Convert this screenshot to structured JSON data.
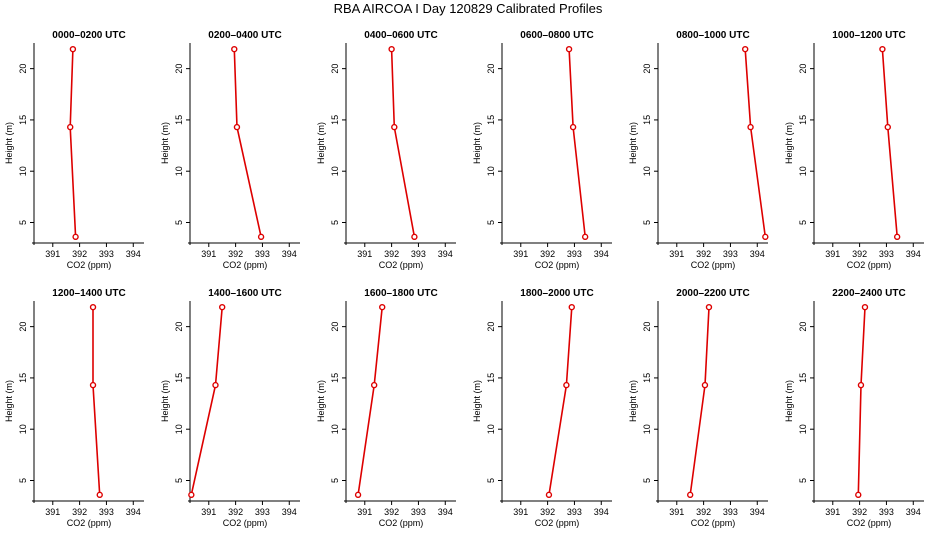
{
  "figure": {
    "title": "RBA AIRCOA I  Day 120829  Calibrated Profiles"
  },
  "colors": {
    "series": "#dd0000",
    "axis": "#000000"
  },
  "chart_data": [
    {
      "type": "line",
      "title": "0000–0200 UTC",
      "xlabel": "CO2 (ppm)",
      "ylabel": "Height (m)",
      "xlim": [
        390.3,
        394.4
      ],
      "ylim": [
        3,
        22.5
      ],
      "x_ticks": [
        391,
        392,
        393,
        394
      ],
      "y_ticks": [
        5,
        10,
        15,
        20
      ],
      "grid": false,
      "series": [
        {
          "points": [
            {
              "x": 391.85,
              "y": 3.6
            },
            {
              "x": 391.65,
              "y": 14.3
            },
            {
              "x": 391.75,
              "y": 21.9
            }
          ]
        }
      ]
    },
    {
      "type": "line",
      "title": "0200–0400 UTC",
      "xlabel": "CO2 (ppm)",
      "ylabel": "Height (m)",
      "xlim": [
        390.3,
        394.4
      ],
      "ylim": [
        3,
        22.5
      ],
      "x_ticks": [
        391,
        392,
        393,
        394
      ],
      "y_ticks": [
        5,
        10,
        15,
        20
      ],
      "grid": false,
      "series": [
        {
          "points": [
            {
              "x": 392.95,
              "y": 3.6
            },
            {
              "x": 392.05,
              "y": 14.3
            },
            {
              "x": 391.95,
              "y": 21.9
            }
          ]
        }
      ]
    },
    {
      "type": "line",
      "title": "0400–0600 UTC",
      "xlabel": "CO2 (ppm)",
      "ylabel": "Height (m)",
      "xlim": [
        390.3,
        394.4
      ],
      "ylim": [
        3,
        22.5
      ],
      "x_ticks": [
        391,
        392,
        393,
        394
      ],
      "y_ticks": [
        5,
        10,
        15,
        20
      ],
      "grid": false,
      "series": [
        {
          "points": [
            {
              "x": 392.85,
              "y": 3.6
            },
            {
              "x": 392.1,
              "y": 14.3
            },
            {
              "x": 392.0,
              "y": 21.9
            }
          ]
        }
      ]
    },
    {
      "type": "line",
      "title": "0600–0800 UTC",
      "xlabel": "CO2 (ppm)",
      "ylabel": "Height (m)",
      "xlim": [
        390.3,
        394.4
      ],
      "ylim": [
        3,
        22.5
      ],
      "x_ticks": [
        391,
        392,
        393,
        394
      ],
      "y_ticks": [
        5,
        10,
        15,
        20
      ],
      "grid": false,
      "series": [
        {
          "points": [
            {
              "x": 393.4,
              "y": 3.6
            },
            {
              "x": 392.95,
              "y": 14.3
            },
            {
              "x": 392.8,
              "y": 21.9
            }
          ]
        }
      ]
    },
    {
      "type": "line",
      "title": "0800–1000 UTC",
      "xlabel": "CO2 (ppm)",
      "ylabel": "Height (m)",
      "xlim": [
        390.3,
        394.4
      ],
      "ylim": [
        3,
        22.5
      ],
      "x_ticks": [
        391,
        392,
        393,
        394
      ],
      "y_ticks": [
        5,
        10,
        15,
        20
      ],
      "grid": false,
      "series": [
        {
          "points": [
            {
              "x": 394.3,
              "y": 3.6
            },
            {
              "x": 393.75,
              "y": 14.3
            },
            {
              "x": 393.55,
              "y": 21.9
            }
          ]
        }
      ]
    },
    {
      "type": "line",
      "title": "1000–1200 UTC",
      "xlabel": "CO2 (ppm)",
      "ylabel": "Height (m)",
      "xlim": [
        390.3,
        394.4
      ],
      "ylim": [
        3,
        22.5
      ],
      "x_ticks": [
        391,
        392,
        393,
        394
      ],
      "y_ticks": [
        5,
        10,
        15,
        20
      ],
      "grid": false,
      "series": [
        {
          "points": [
            {
              "x": 393.4,
              "y": 3.6
            },
            {
              "x": 393.05,
              "y": 14.3
            },
            {
              "x": 392.85,
              "y": 21.9
            }
          ]
        }
      ]
    },
    {
      "type": "line",
      "title": "1200–1400 UTC",
      "xlabel": "CO2 (ppm)",
      "ylabel": "Height (m)",
      "xlim": [
        390.3,
        394.4
      ],
      "ylim": [
        3,
        22.5
      ],
      "x_ticks": [
        391,
        392,
        393,
        394
      ],
      "y_ticks": [
        5,
        10,
        15,
        20
      ],
      "grid": false,
      "series": [
        {
          "points": [
            {
              "x": 392.75,
              "y": 3.6
            },
            {
              "x": 392.5,
              "y": 14.3
            },
            {
              "x": 392.5,
              "y": 21.9
            }
          ]
        }
      ]
    },
    {
      "type": "line",
      "title": "1400–1600 UTC",
      "xlabel": "CO2 (ppm)",
      "ylabel": "Height (m)",
      "xlim": [
        390.3,
        394.4
      ],
      "ylim": [
        3,
        22.5
      ],
      "x_ticks": [
        391,
        392,
        393,
        394
      ],
      "y_ticks": [
        5,
        10,
        15,
        20
      ],
      "grid": false,
      "series": [
        {
          "points": [
            {
              "x": 390.35,
              "y": 3.6
            },
            {
              "x": 391.25,
              "y": 14.3
            },
            {
              "x": 391.5,
              "y": 21.9
            }
          ]
        }
      ]
    },
    {
      "type": "line",
      "title": "1600–1800 UTC",
      "xlabel": "CO2 (ppm)",
      "ylabel": "Height (m)",
      "xlim": [
        390.3,
        394.4
      ],
      "ylim": [
        3,
        22.5
      ],
      "x_ticks": [
        391,
        392,
        393,
        394
      ],
      "y_ticks": [
        5,
        10,
        15,
        20
      ],
      "grid": false,
      "series": [
        {
          "points": [
            {
              "x": 390.75,
              "y": 3.6
            },
            {
              "x": 391.35,
              "y": 14.3
            },
            {
              "x": 391.65,
              "y": 21.9
            }
          ]
        }
      ]
    },
    {
      "type": "line",
      "title": "1800–2000 UTC",
      "xlabel": "CO2 (ppm)",
      "ylabel": "Height (m)",
      "xlim": [
        390.3,
        394.4
      ],
      "ylim": [
        3,
        22.5
      ],
      "x_ticks": [
        391,
        392,
        393,
        394
      ],
      "y_ticks": [
        5,
        10,
        15,
        20
      ],
      "grid": false,
      "series": [
        {
          "points": [
            {
              "x": 392.05,
              "y": 3.6
            },
            {
              "x": 392.7,
              "y": 14.3
            },
            {
              "x": 392.9,
              "y": 21.9
            }
          ]
        }
      ]
    },
    {
      "type": "line",
      "title": "2000–2200 UTC",
      "xlabel": "CO2 (ppm)",
      "ylabel": "Height (m)",
      "xlim": [
        390.3,
        394.4
      ],
      "ylim": [
        3,
        22.5
      ],
      "x_ticks": [
        391,
        392,
        393,
        394
      ],
      "y_ticks": [
        5,
        10,
        15,
        20
      ],
      "grid": false,
      "series": [
        {
          "points": [
            {
              "x": 391.5,
              "y": 3.6
            },
            {
              "x": 392.05,
              "y": 14.3
            },
            {
              "x": 392.2,
              "y": 21.9
            }
          ]
        }
      ]
    },
    {
      "type": "line",
      "title": "2200–2400 UTC",
      "xlabel": "CO2 (ppm)",
      "ylabel": "Height (m)",
      "xlim": [
        390.3,
        394.4
      ],
      "ylim": [
        3,
        22.5
      ],
      "x_ticks": [
        391,
        392,
        393,
        394
      ],
      "y_ticks": [
        5,
        10,
        15,
        20
      ],
      "grid": false,
      "series": [
        {
          "points": [
            {
              "x": 391.95,
              "y": 3.6
            },
            {
              "x": 392.05,
              "y": 14.3
            },
            {
              "x": 392.2,
              "y": 21.9
            }
          ]
        }
      ]
    }
  ]
}
